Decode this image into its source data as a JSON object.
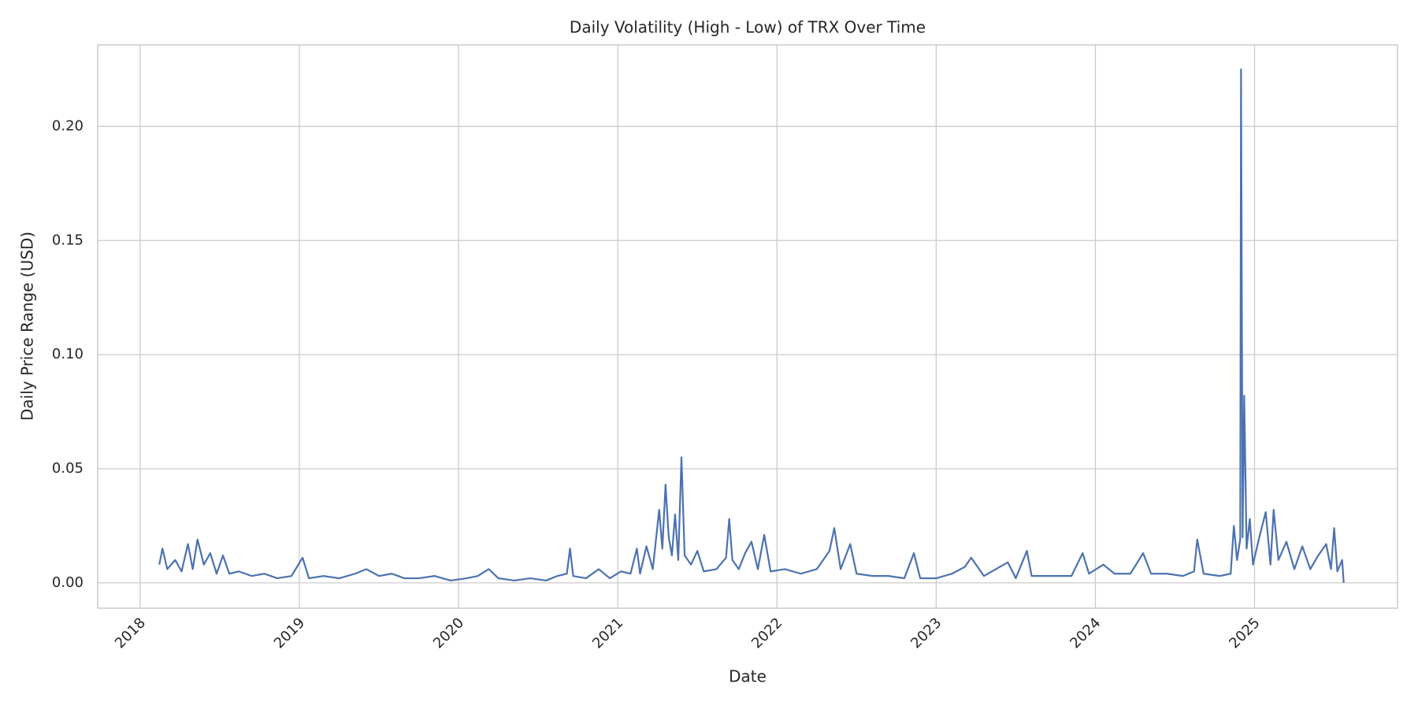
{
  "chart_data": {
    "type": "line",
    "title": "Daily Volatility (High - Low) of TRX Over Time",
    "x_label": "Date",
    "y_label": "Daily Price Range (USD)",
    "grid": true,
    "xlim": [
      2017.733,
      2025.898
    ],
    "xticks": [
      2018,
      2019,
      2020,
      2021,
      2022,
      2023,
      2024,
      2025
    ],
    "ylim": [
      -0.0111,
      0.2357
    ],
    "yticks": [
      {
        "value": 0,
        "label": "0.00"
      },
      {
        "value": 0.05,
        "label": "0.05"
      },
      {
        "value": 0.1,
        "label": "0.10"
      },
      {
        "value": 0.15,
        "label": "0.15"
      },
      {
        "value": 0.2,
        "label": "0.20"
      }
    ],
    "series": [
      {
        "name": "Daily Price Range",
        "color": "#4c72b0",
        "x": [
          2018.12,
          2018.14,
          2018.17,
          2018.22,
          2018.26,
          2018.3,
          2018.33,
          2018.36,
          2018.4,
          2018.44,
          2018.48,
          2018.52,
          2018.56,
          2018.62,
          2018.7,
          2018.78,
          2018.86,
          2018.95,
          2019.02,
          2019.06,
          2019.15,
          2019.25,
          2019.35,
          2019.42,
          2019.5,
          2019.58,
          2019.66,
          2019.75,
          2019.85,
          2019.95,
          2020.05,
          2020.12,
          2020.19,
          2020.25,
          2020.35,
          2020.45,
          2020.55,
          2020.62,
          2020.68,
          2020.7,
          2020.72,
          2020.8,
          2020.88,
          2020.95,
          2021.02,
          2021.08,
          2021.12,
          2021.14,
          2021.18,
          2021.22,
          2021.26,
          2021.28,
          2021.3,
          2021.32,
          2021.34,
          2021.36,
          2021.38,
          2021.4,
          2021.42,
          2021.46,
          2021.5,
          2021.54,
          2021.62,
          2021.68,
          2021.7,
          2021.72,
          2021.76,
          2021.8,
          2021.84,
          2021.88,
          2021.92,
          2021.96,
          2022.05,
          2022.15,
          2022.25,
          2022.33,
          2022.36,
          2022.4,
          2022.46,
          2022.5,
          2022.6,
          2022.7,
          2022.8,
          2022.86,
          2022.9,
          2023.0,
          2023.1,
          2023.18,
          2023.22,
          2023.3,
          2023.45,
          2023.5,
          2023.57,
          2023.6,
          2023.75,
          2023.85,
          2023.92,
          2023.96,
          2024.05,
          2024.12,
          2024.22,
          2024.3,
          2024.35,
          2024.45,
          2024.55,
          2024.62,
          2024.64,
          2024.68,
          2024.78,
          2024.85,
          2024.87,
          2024.89,
          2024.91,
          2024.915,
          2024.925,
          2024.935,
          2024.95,
          2024.97,
          2024.99,
          2025.03,
          2025.07,
          2025.1,
          2025.12,
          2025.15,
          2025.2,
          2025.25,
          2025.3,
          2025.35,
          2025.4,
          2025.45,
          2025.48,
          2025.5,
          2025.52,
          2025.55,
          2025.56
        ],
        "values": [
          0.008,
          0.015,
          0.006,
          0.01,
          0.005,
          0.017,
          0.006,
          0.019,
          0.008,
          0.013,
          0.004,
          0.012,
          0.004,
          0.005,
          0.003,
          0.004,
          0.002,
          0.003,
          0.011,
          0.002,
          0.003,
          0.002,
          0.004,
          0.006,
          0.003,
          0.004,
          0.002,
          0.002,
          0.003,
          0.001,
          0.002,
          0.003,
          0.006,
          0.002,
          0.001,
          0.002,
          0.001,
          0.003,
          0.004,
          0.015,
          0.003,
          0.002,
          0.006,
          0.002,
          0.005,
          0.004,
          0.015,
          0.004,
          0.016,
          0.006,
          0.032,
          0.015,
          0.043,
          0.02,
          0.012,
          0.03,
          0.01,
          0.055,
          0.012,
          0.008,
          0.014,
          0.005,
          0.006,
          0.011,
          0.028,
          0.01,
          0.006,
          0.013,
          0.018,
          0.006,
          0.021,
          0.005,
          0.006,
          0.004,
          0.006,
          0.014,
          0.024,
          0.006,
          0.017,
          0.004,
          0.003,
          0.003,
          0.002,
          0.013,
          0.002,
          0.002,
          0.004,
          0.007,
          0.011,
          0.003,
          0.009,
          0.002,
          0.014,
          0.003,
          0.003,
          0.003,
          0.013,
          0.004,
          0.008,
          0.004,
          0.004,
          0.013,
          0.004,
          0.004,
          0.003,
          0.005,
          0.019,
          0.004,
          0.003,
          0.004,
          0.025,
          0.01,
          0.019,
          0.225,
          0.02,
          0.082,
          0.015,
          0.028,
          0.008,
          0.02,
          0.031,
          0.008,
          0.032,
          0.01,
          0.018,
          0.006,
          0.016,
          0.006,
          0.012,
          0.017,
          0.006,
          0.024,
          0.005,
          0.01,
          0
        ]
      }
    ]
  }
}
